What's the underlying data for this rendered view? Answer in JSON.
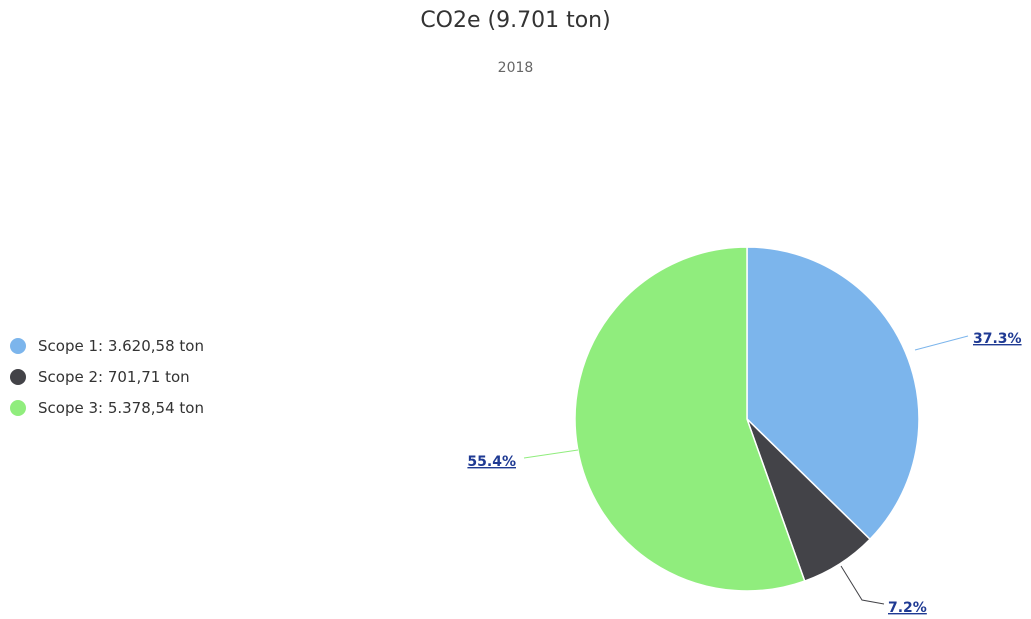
{
  "chart_data": {
    "type": "pie",
    "title": "CO2e (9.701 ton)",
    "subtitle": "2018",
    "series": [
      {
        "name": "Scope 1",
        "legend_label": "Scope 1: 3.620,58 ton",
        "value": 3620.58,
        "percent_label": "37.3%",
        "color": "#7cb5ec"
      },
      {
        "name": "Scope 2",
        "legend_label": "Scope 2: 701,71 ton",
        "value": 701.71,
        "percent_label": "7.2%",
        "color": "#434348"
      },
      {
        "name": "Scope 3",
        "legend_label": "Scope 3: 5.378,54 ton",
        "value": 5378.54,
        "percent_label": "55.4%",
        "color": "#90ed7d"
      }
    ],
    "legend": {
      "placement": "left"
    }
  }
}
